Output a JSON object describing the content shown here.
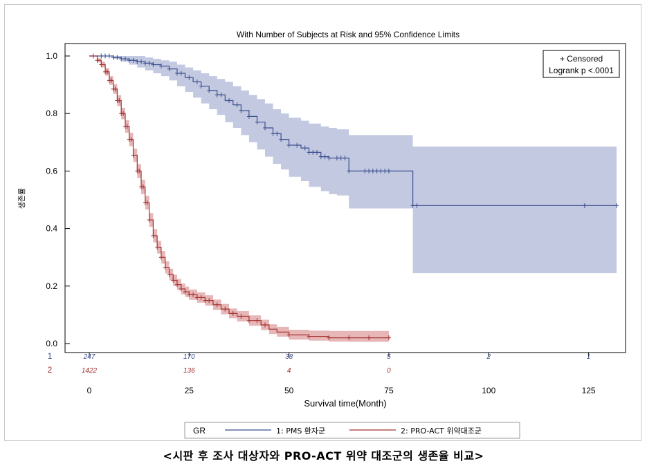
{
  "caption": "<시판 후 조사 대상자와 PRO-ACT 위약 대조군의 생존율 비교>",
  "chart_data": {
    "type": "line",
    "title": "With Number of Subjects at Risk and 95% Confidence Limits",
    "xlabel": "Survival time(Month)",
    "ylabel": "생존률",
    "xlim": [
      0,
      132
    ],
    "ylim": [
      0,
      1.0
    ],
    "xticks": [
      0,
      25,
      50,
      75,
      100,
      125
    ],
    "yticks": [
      "0.0",
      "0.2",
      "0.4",
      "0.6",
      "0.8",
      "1.0"
    ],
    "inset": [
      "+ Censored",
      "Logrank p <.0001"
    ],
    "legend_title": "GR",
    "legend_position": "bottom",
    "at_risk_times": [
      0,
      25,
      50,
      75,
      100,
      125
    ],
    "series": [
      {
        "name": "1: PMS 환자군",
        "group": "1",
        "color": "#3b4f8f",
        "band_color": "#b8bfdc",
        "x": [
          0,
          3,
          6,
          8,
          10,
          12,
          14,
          16,
          18,
          20,
          22,
          24,
          26,
          28,
          30,
          32,
          34,
          36,
          38,
          40,
          42,
          44,
          46,
          48,
          50,
          53,
          55,
          58,
          60,
          62,
          65,
          68,
          70,
          75,
          80,
          81,
          85,
          100,
          125,
          132
        ],
        "y": [
          1.0,
          1.0,
          0.995,
          0.99,
          0.985,
          0.98,
          0.975,
          0.97,
          0.965,
          0.955,
          0.94,
          0.925,
          0.91,
          0.895,
          0.88,
          0.865,
          0.845,
          0.83,
          0.81,
          0.79,
          0.77,
          0.75,
          0.73,
          0.71,
          0.69,
          0.68,
          0.665,
          0.65,
          0.645,
          0.645,
          0.6,
          0.6,
          0.6,
          0.6,
          0.6,
          0.48,
          0.48,
          0.48,
          0.48,
          0.48
        ],
        "lower": [
          1.0,
          1.0,
          0.99,
          0.98,
          0.97,
          0.96,
          0.95,
          0.94,
          0.93,
          0.915,
          0.895,
          0.875,
          0.855,
          0.835,
          0.815,
          0.795,
          0.77,
          0.75,
          0.725,
          0.7,
          0.675,
          0.65,
          0.625,
          0.605,
          0.58,
          0.565,
          0.545,
          0.53,
          0.52,
          0.515,
          0.47,
          0.47,
          0.47,
          0.47,
          0.47,
          0.245,
          0.245,
          0.245,
          0.245,
          0.245
        ],
        "upper": [
          1.0,
          1.0,
          1.0,
          1.0,
          1.0,
          1.0,
          0.995,
          0.99,
          0.985,
          0.98,
          0.97,
          0.96,
          0.95,
          0.94,
          0.93,
          0.92,
          0.91,
          0.895,
          0.88,
          0.865,
          0.85,
          0.835,
          0.815,
          0.8,
          0.785,
          0.775,
          0.765,
          0.755,
          0.75,
          0.745,
          0.725,
          0.725,
          0.725,
          0.725,
          0.725,
          0.685,
          0.685,
          0.685,
          0.685,
          0.685
        ],
        "censored": [
          3,
          4,
          5,
          6,
          7,
          8,
          9,
          10,
          11,
          12,
          13,
          14,
          15,
          16,
          18,
          20,
          22,
          23,
          25,
          27,
          28,
          30,
          32,
          33,
          35,
          37,
          38,
          40,
          42,
          44,
          46,
          47,
          48,
          50,
          52,
          54,
          55,
          56,
          57,
          58,
          59,
          60,
          62,
          63,
          64,
          65,
          69,
          70,
          71,
          72,
          73,
          74,
          75,
          81,
          82,
          124,
          132
        ],
        "at_risk": [
          "247",
          "170",
          "38",
          "5",
          "2",
          "1"
        ]
      },
      {
        "name": "2: PRO-ACT 위약대조군",
        "group": "2",
        "color": "#a33030",
        "band_color": "#e3a9a9",
        "x": [
          0,
          2,
          3,
          4,
          5,
          6,
          7,
          8,
          9,
          10,
          11,
          12,
          13,
          14,
          15,
          16,
          17,
          18,
          19,
          20,
          21,
          22,
          23,
          24,
          25,
          27,
          29,
          31,
          33,
          35,
          37,
          40,
          43,
          45,
          47,
          50,
          55,
          60,
          65,
          70,
          75
        ],
        "y": [
          1.0,
          0.985,
          0.97,
          0.945,
          0.915,
          0.885,
          0.845,
          0.8,
          0.755,
          0.71,
          0.655,
          0.6,
          0.545,
          0.49,
          0.43,
          0.375,
          0.335,
          0.3,
          0.265,
          0.24,
          0.22,
          0.205,
          0.19,
          0.18,
          0.17,
          0.16,
          0.15,
          0.135,
          0.12,
          0.105,
          0.095,
          0.08,
          0.065,
          0.05,
          0.04,
          0.03,
          0.025,
          0.02,
          0.02,
          0.02,
          0.02
        ],
        "lower": [
          1.0,
          0.978,
          0.96,
          0.932,
          0.9,
          0.868,
          0.826,
          0.78,
          0.733,
          0.687,
          0.632,
          0.576,
          0.52,
          0.466,
          0.406,
          0.352,
          0.313,
          0.278,
          0.244,
          0.22,
          0.2,
          0.186,
          0.171,
          0.162,
          0.152,
          0.142,
          0.132,
          0.117,
          0.102,
          0.088,
          0.077,
          0.062,
          0.047,
          0.033,
          0.024,
          0.014,
          0.01,
          0.007,
          0.006,
          0.006,
          0.006
        ],
        "upper": [
          1.0,
          0.992,
          0.98,
          0.958,
          0.93,
          0.902,
          0.864,
          0.82,
          0.777,
          0.733,
          0.678,
          0.624,
          0.57,
          0.514,
          0.454,
          0.398,
          0.357,
          0.322,
          0.286,
          0.26,
          0.24,
          0.224,
          0.209,
          0.198,
          0.188,
          0.178,
          0.168,
          0.153,
          0.138,
          0.122,
          0.113,
          0.098,
          0.083,
          0.067,
          0.058,
          0.048,
          0.045,
          0.044,
          0.044,
          0.044,
          0.044
        ],
        "censored": [
          1,
          2,
          3,
          4,
          4.5,
          5,
          5.5,
          6,
          6.5,
          7,
          7.5,
          8,
          8.5,
          9,
          9.5,
          10,
          10.5,
          11,
          12,
          12.5,
          13,
          13.5,
          14,
          14.5,
          15,
          16,
          17,
          18,
          19,
          20,
          21,
          22,
          23,
          24,
          25,
          26,
          27,
          28,
          29,
          30,
          32,
          34,
          36,
          38,
          40,
          42,
          44,
          50,
          55,
          60,
          65,
          70,
          75
        ],
        "at_risk": [
          "1422",
          "136",
          "4",
          "0",
          "",
          ""
        ]
      }
    ]
  }
}
